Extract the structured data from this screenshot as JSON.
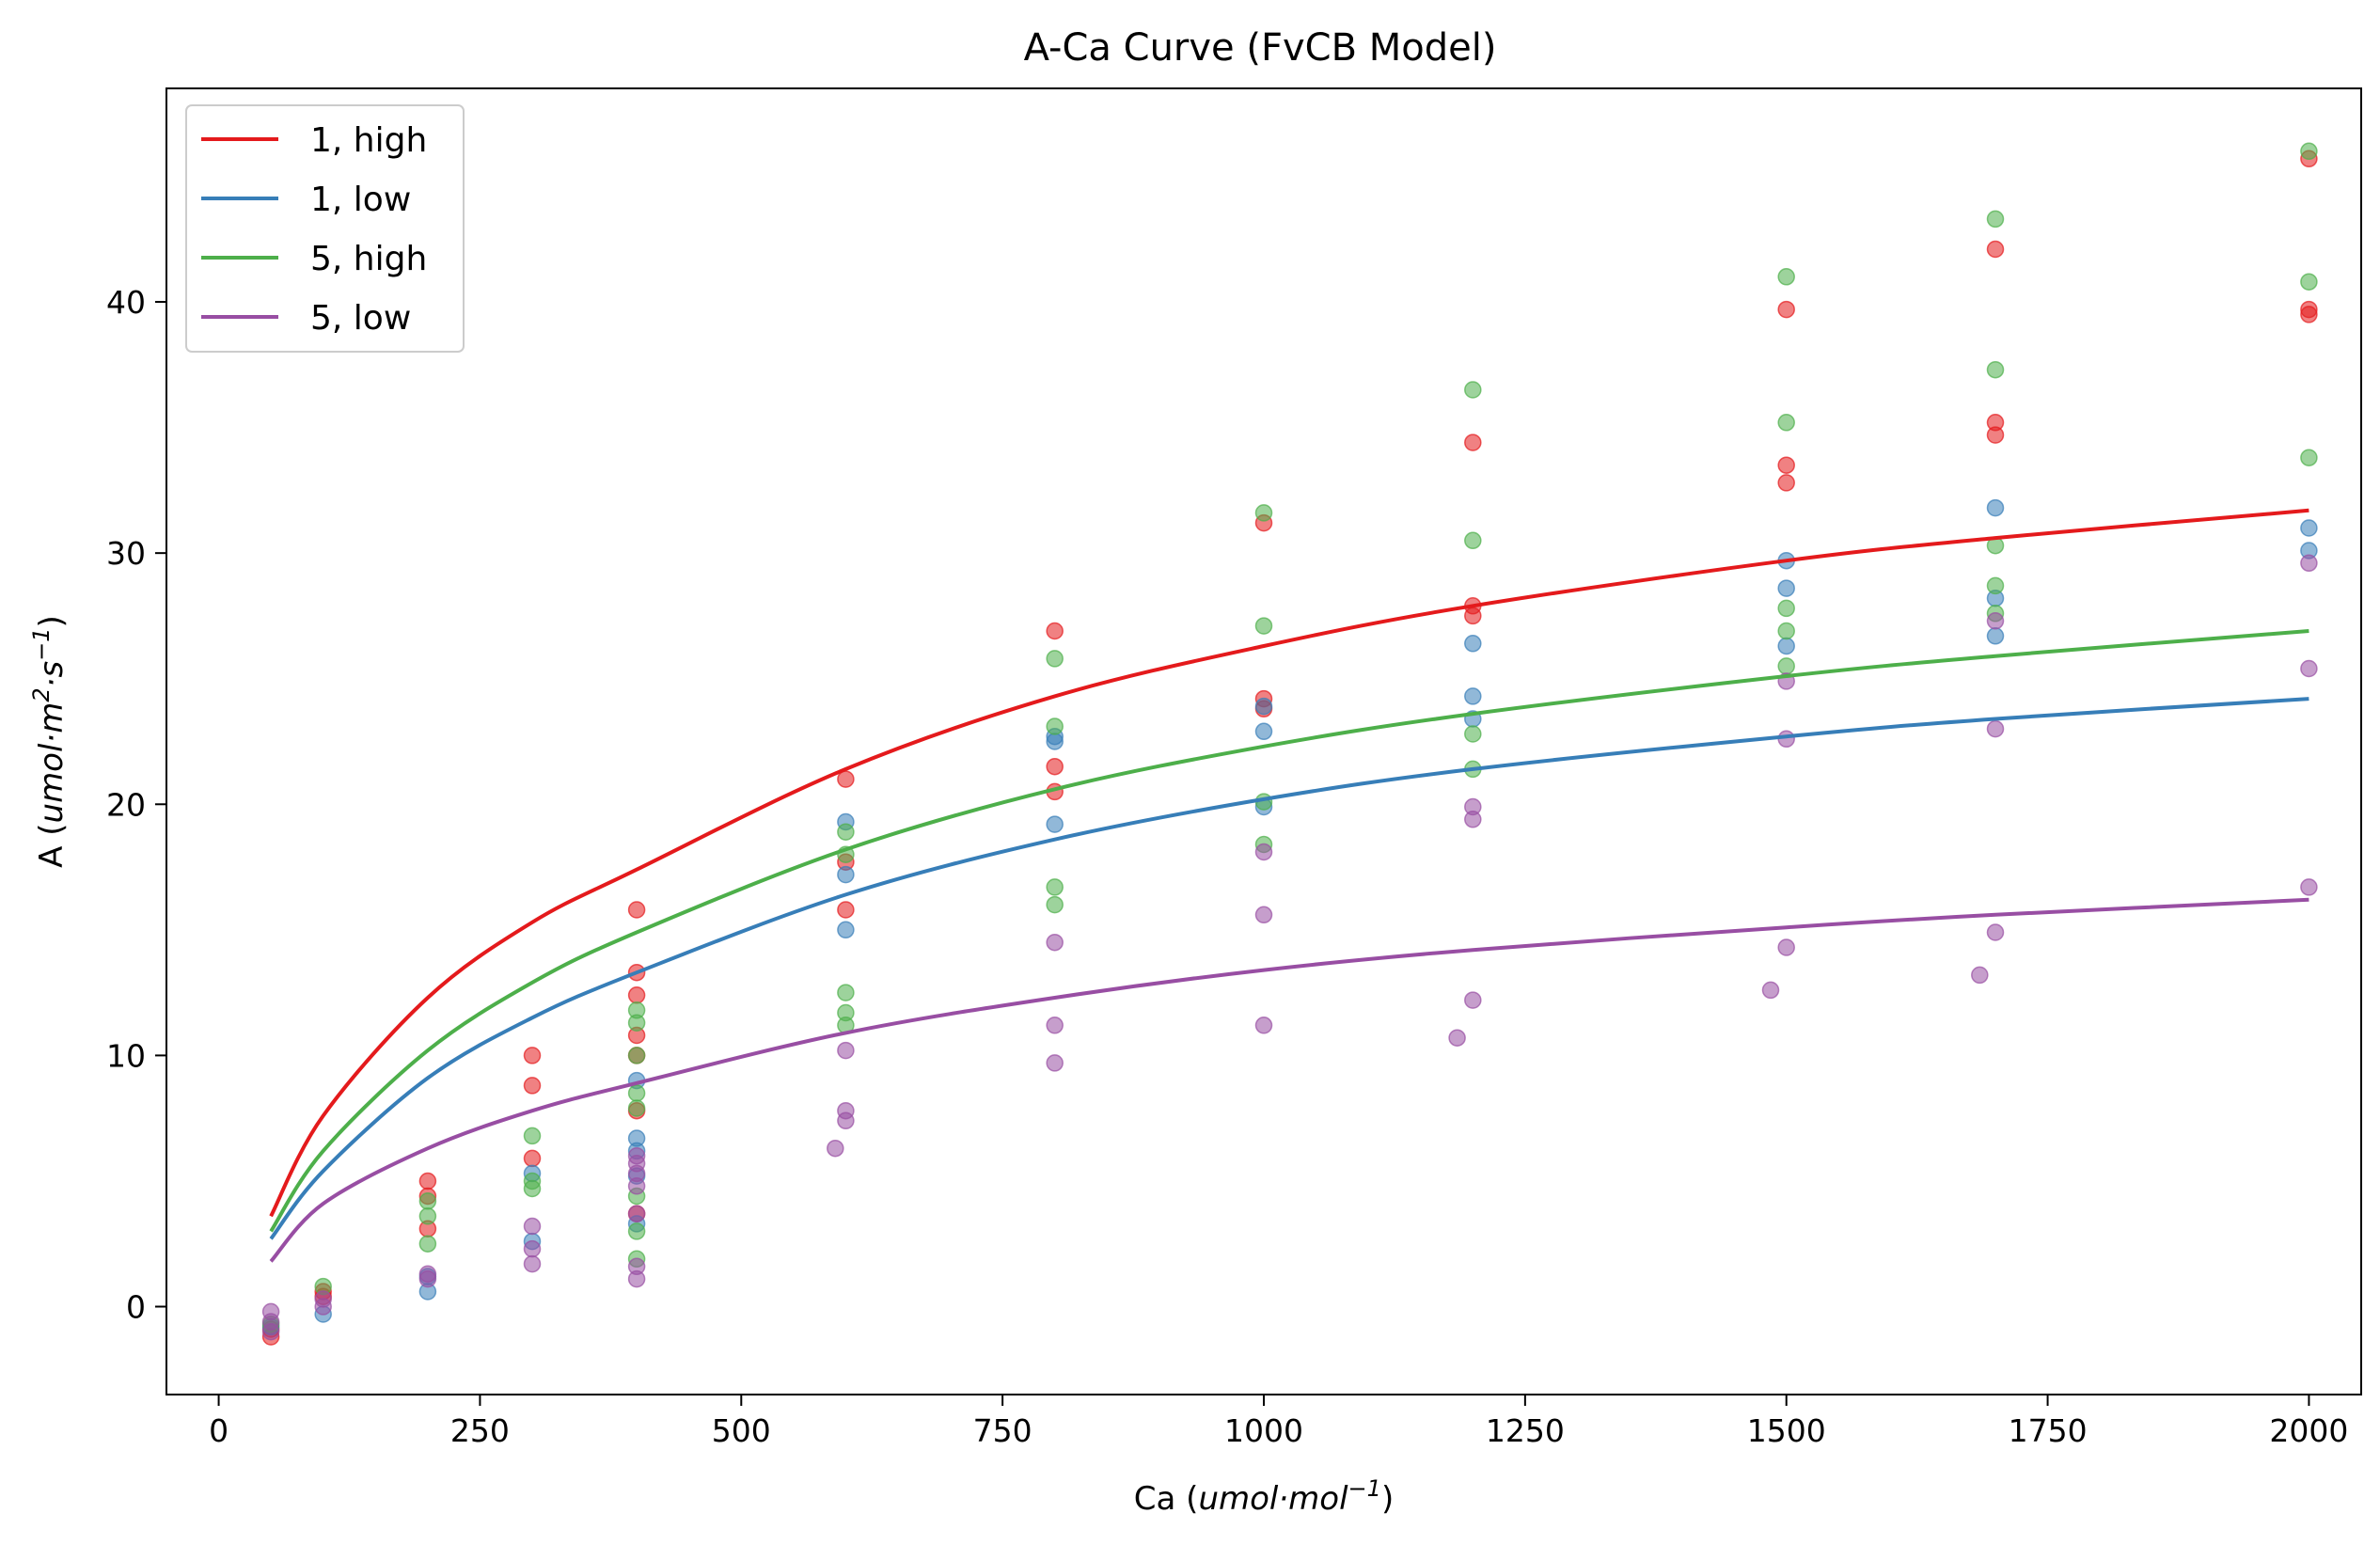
{
  "chart_data": {
    "type": "scatter",
    "title": "A-Ca Curve (FvCB Model)",
    "xlabel": {
      "prefix": "Ca (",
      "unit": "umol·mol",
      "exp": "−1",
      "suffix": ")"
    },
    "ylabel": {
      "prefix": "A (",
      "unit1": "umol·m",
      "exp1": "2",
      "unit2": "·s",
      "exp2": "−1",
      "suffix": ")"
    },
    "xlim": [
      -50,
      2050
    ],
    "ylim": [
      -3.5,
      48.5
    ],
    "xticks": [
      0,
      250,
      500,
      750,
      1000,
      1250,
      1500,
      1750,
      2000
    ],
    "yticks": [
      0,
      10,
      20,
      30,
      40
    ],
    "xtick_labels": [
      "0",
      "250",
      "500",
      "750",
      "1000",
      "1250",
      "1500",
      "1750",
      "2000"
    ],
    "ytick_labels": [
      "0",
      "10",
      "20",
      "30",
      "40"
    ],
    "grid": false,
    "legend_position": "top-left",
    "series": [
      {
        "name": "1, high",
        "color": "#e41a1c",
        "curve": {
          "x": [
            50,
            100,
            200,
            300,
            400,
            600,
            800,
            1000,
            1200,
            1500,
            1700,
            2000
          ],
          "y": [
            3.6,
            7.6,
            12.3,
            15.3,
            17.4,
            21.4,
            24.3,
            26.3,
            27.9,
            29.7,
            30.6,
            31.7
          ]
        },
        "points": [
          [
            50,
            -1.2
          ],
          [
            50,
            -0.9
          ],
          [
            100,
            0.4
          ],
          [
            100,
            0.6
          ],
          [
            200,
            5.0
          ],
          [
            200,
            4.4
          ],
          [
            200,
            3.1
          ],
          [
            300,
            10.0
          ],
          [
            300,
            8.8
          ],
          [
            300,
            5.9
          ],
          [
            400,
            15.8
          ],
          [
            400,
            13.3
          ],
          [
            400,
            12.4
          ],
          [
            400,
            10.8
          ],
          [
            400,
            10.0
          ],
          [
            400,
            7.8
          ],
          [
            400,
            3.7
          ],
          [
            600,
            21.0
          ],
          [
            600,
            17.7
          ],
          [
            600,
            15.8
          ],
          [
            800,
            26.9
          ],
          [
            800,
            21.5
          ],
          [
            800,
            20.5
          ],
          [
            1000,
            31.2
          ],
          [
            1000,
            24.2
          ],
          [
            1000,
            23.8
          ],
          [
            1200,
            34.4
          ],
          [
            1200,
            27.9
          ],
          [
            1200,
            27.5
          ],
          [
            1500,
            39.7
          ],
          [
            1500,
            33.5
          ],
          [
            1500,
            32.8
          ],
          [
            1700,
            42.1
          ],
          [
            1700,
            35.2
          ],
          [
            1700,
            34.7
          ],
          [
            2000,
            45.7
          ],
          [
            2000,
            39.7
          ],
          [
            2000,
            39.5
          ]
        ]
      },
      {
        "name": "1, low",
        "color": "#377eb8",
        "curve": {
          "x": [
            50,
            100,
            200,
            300,
            400,
            600,
            800,
            1000,
            1200,
            1500,
            1700,
            2000
          ],
          "y": [
            2.7,
            5.4,
            9.1,
            11.5,
            13.3,
            16.4,
            18.6,
            20.2,
            21.4,
            22.7,
            23.4,
            24.2
          ]
        },
        "points": [
          [
            50,
            -0.8
          ],
          [
            100,
            -0.3
          ],
          [
            200,
            0.6
          ],
          [
            200,
            1.2
          ],
          [
            300,
            2.6
          ],
          [
            300,
            5.3
          ],
          [
            400,
            9.0
          ],
          [
            400,
            6.7
          ],
          [
            400,
            6.2
          ],
          [
            400,
            5.2
          ],
          [
            400,
            3.3
          ],
          [
            600,
            19.3
          ],
          [
            600,
            17.2
          ],
          [
            600,
            15.0
          ],
          [
            800,
            22.7
          ],
          [
            800,
            22.5
          ],
          [
            800,
            19.2
          ],
          [
            1000,
            23.9
          ],
          [
            1000,
            22.9
          ],
          [
            1000,
            19.9
          ],
          [
            1200,
            26.4
          ],
          [
            1200,
            24.3
          ],
          [
            1200,
            23.4
          ],
          [
            1500,
            29.7
          ],
          [
            1500,
            28.6
          ],
          [
            1500,
            26.3
          ],
          [
            1700,
            31.8
          ],
          [
            1700,
            28.2
          ],
          [
            1700,
            26.7
          ],
          [
            2000,
            31.0
          ],
          [
            2000,
            30.1
          ]
        ]
      },
      {
        "name": "5, high",
        "color": "#4daf4a",
        "curve": {
          "x": [
            50,
            100,
            200,
            300,
            400,
            600,
            800,
            1000,
            1200,
            1500,
            1700,
            2000
          ],
          "y": [
            3.0,
            6.2,
            10.2,
            12.9,
            14.9,
            18.2,
            20.6,
            22.3,
            23.6,
            25.1,
            25.9,
            26.9
          ]
        },
        "points": [
          [
            50,
            -0.7
          ],
          [
            100,
            0.8
          ],
          [
            200,
            4.2
          ],
          [
            200,
            3.6
          ],
          [
            200,
            2.5
          ],
          [
            300,
            6.8
          ],
          [
            300,
            5.0
          ],
          [
            300,
            4.7
          ],
          [
            400,
            11.8
          ],
          [
            400,
            11.3
          ],
          [
            400,
            10.0
          ],
          [
            400,
            8.5
          ],
          [
            400,
            7.9
          ],
          [
            400,
            4.4
          ],
          [
            400,
            3.0
          ],
          [
            400,
            1.9
          ],
          [
            600,
            18.9
          ],
          [
            600,
            18.0
          ],
          [
            600,
            12.5
          ],
          [
            600,
            11.7
          ],
          [
            600,
            11.2
          ],
          [
            800,
            25.8
          ],
          [
            800,
            23.1
          ],
          [
            800,
            16.7
          ],
          [
            800,
            16.0
          ],
          [
            1000,
            31.6
          ],
          [
            1000,
            27.1
          ],
          [
            1000,
            20.1
          ],
          [
            1000,
            18.4
          ],
          [
            1200,
            36.5
          ],
          [
            1200,
            30.5
          ],
          [
            1200,
            22.8
          ],
          [
            1200,
            21.4
          ],
          [
            1500,
            41.0
          ],
          [
            1500,
            35.2
          ],
          [
            1500,
            27.8
          ],
          [
            1500,
            26.9
          ],
          [
            1500,
            25.5
          ],
          [
            1700,
            43.3
          ],
          [
            1700,
            37.3
          ],
          [
            1700,
            30.3
          ],
          [
            1700,
            28.7
          ],
          [
            1700,
            27.6
          ],
          [
            2000,
            46.0
          ],
          [
            2000,
            40.8
          ],
          [
            2000,
            33.8
          ]
        ]
      },
      {
        "name": "5, low",
        "color": "#984ea3",
        "curve": {
          "x": [
            50,
            100,
            200,
            300,
            400,
            600,
            800,
            1000,
            1200,
            1500,
            1700,
            2000
          ],
          "y": [
            1.8,
            4.1,
            6.3,
            7.8,
            8.9,
            10.9,
            12.3,
            13.4,
            14.2,
            15.1,
            15.6,
            16.2
          ]
        },
        "points": [
          [
            50,
            -0.2
          ],
          [
            50,
            -0.6
          ],
          [
            50,
            -1.0
          ],
          [
            100,
            0.0
          ],
          [
            100,
            0.3
          ],
          [
            200,
            1.3
          ],
          [
            200,
            1.1
          ],
          [
            300,
            3.2
          ],
          [
            300,
            2.3
          ],
          [
            300,
            1.7
          ],
          [
            400,
            6.0
          ],
          [
            400,
            5.7
          ],
          [
            400,
            5.3
          ],
          [
            400,
            4.8
          ],
          [
            400,
            3.7
          ],
          [
            400,
            1.6
          ],
          [
            400,
            1.1
          ],
          [
            590,
            6.3
          ],
          [
            600,
            10.2
          ],
          [
            600,
            7.8
          ],
          [
            600,
            7.4
          ],
          [
            800,
            14.5
          ],
          [
            800,
            11.2
          ],
          [
            800,
            9.7
          ],
          [
            1000,
            18.1
          ],
          [
            1000,
            15.6
          ],
          [
            1000,
            11.2
          ],
          [
            1185,
            10.7
          ],
          [
            1200,
            19.9
          ],
          [
            1200,
            19.4
          ],
          [
            1200,
            12.2
          ],
          [
            1485,
            12.6
          ],
          [
            1500,
            24.9
          ],
          [
            1500,
            22.6
          ],
          [
            1500,
            14.3
          ],
          [
            1685,
            13.2
          ],
          [
            1700,
            27.3
          ],
          [
            1700,
            23.0
          ],
          [
            1700,
            14.9
          ],
          [
            2000,
            29.6
          ],
          [
            2000,
            25.4
          ],
          [
            2000,
            16.7
          ]
        ]
      }
    ]
  }
}
